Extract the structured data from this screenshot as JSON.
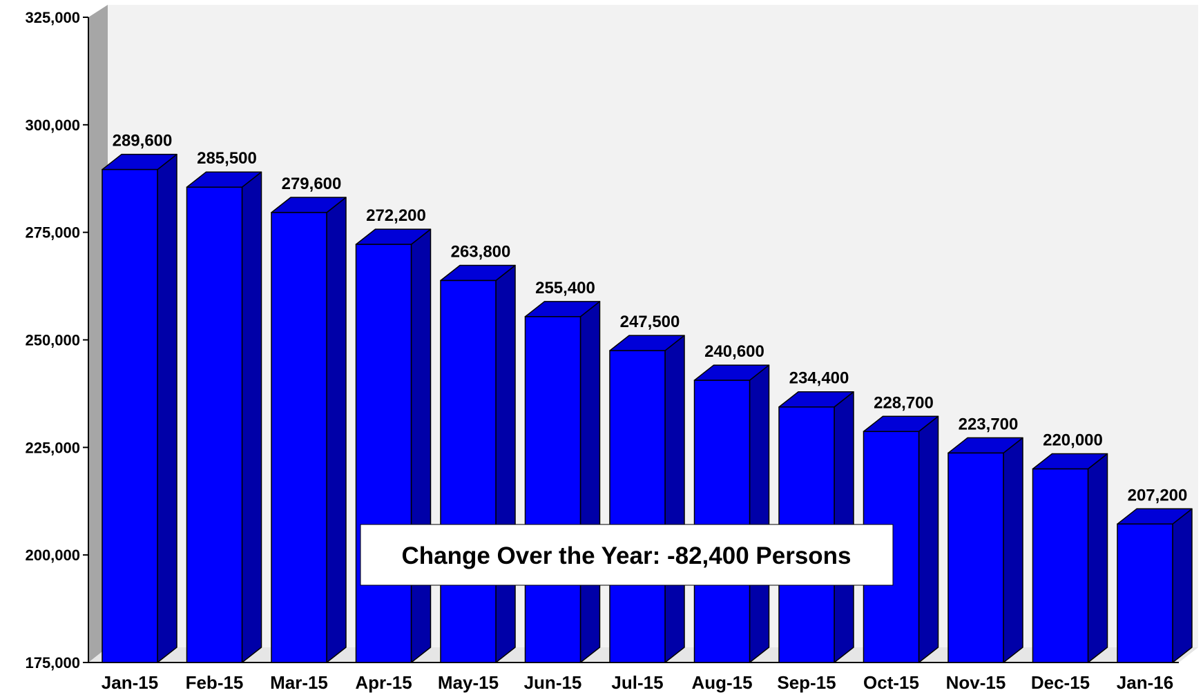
{
  "chart_data": {
    "type": "bar",
    "title": "",
    "xlabel": "",
    "ylabel": "",
    "categories": [
      "Jan-15",
      "Feb-15",
      "Mar-15",
      "Apr-15",
      "May-15",
      "Jun-15",
      "Jul-15",
      "Aug-15",
      "Sep-15",
      "Oct-15",
      "Nov-15",
      "Dec-15",
      "Jan-16"
    ],
    "values": [
      289600,
      285500,
      279600,
      272200,
      263800,
      255400,
      247500,
      240600,
      234400,
      228700,
      223700,
      220000,
      207200
    ],
    "data_labels": [
      "289,600",
      "285,500",
      "279,600",
      "272,200",
      "263,800",
      "255,400",
      "247,500",
      "240,600",
      "234,400",
      "228,700",
      "223,700",
      "220,000",
      "207,200"
    ],
    "ylim": [
      175000,
      325000
    ],
    "yticks": [
      175000,
      200000,
      225000,
      250000,
      275000,
      300000,
      325000
    ],
    "ytick_labels": [
      "175,000",
      "200,000",
      "225,000",
      "250,000",
      "275,000",
      "300,000",
      "325,000"
    ],
    "grid": false,
    "legend": "none",
    "style": "3d",
    "colors": {
      "bar_front": "#0000ff",
      "bar_side": "#0000a8",
      "bar_top": "#0000d8",
      "plot_back": "#f2f2f2",
      "left_wall": "#a6a6a6"
    },
    "annotation": "Change Over  the Year: -82,400 Persons"
  }
}
